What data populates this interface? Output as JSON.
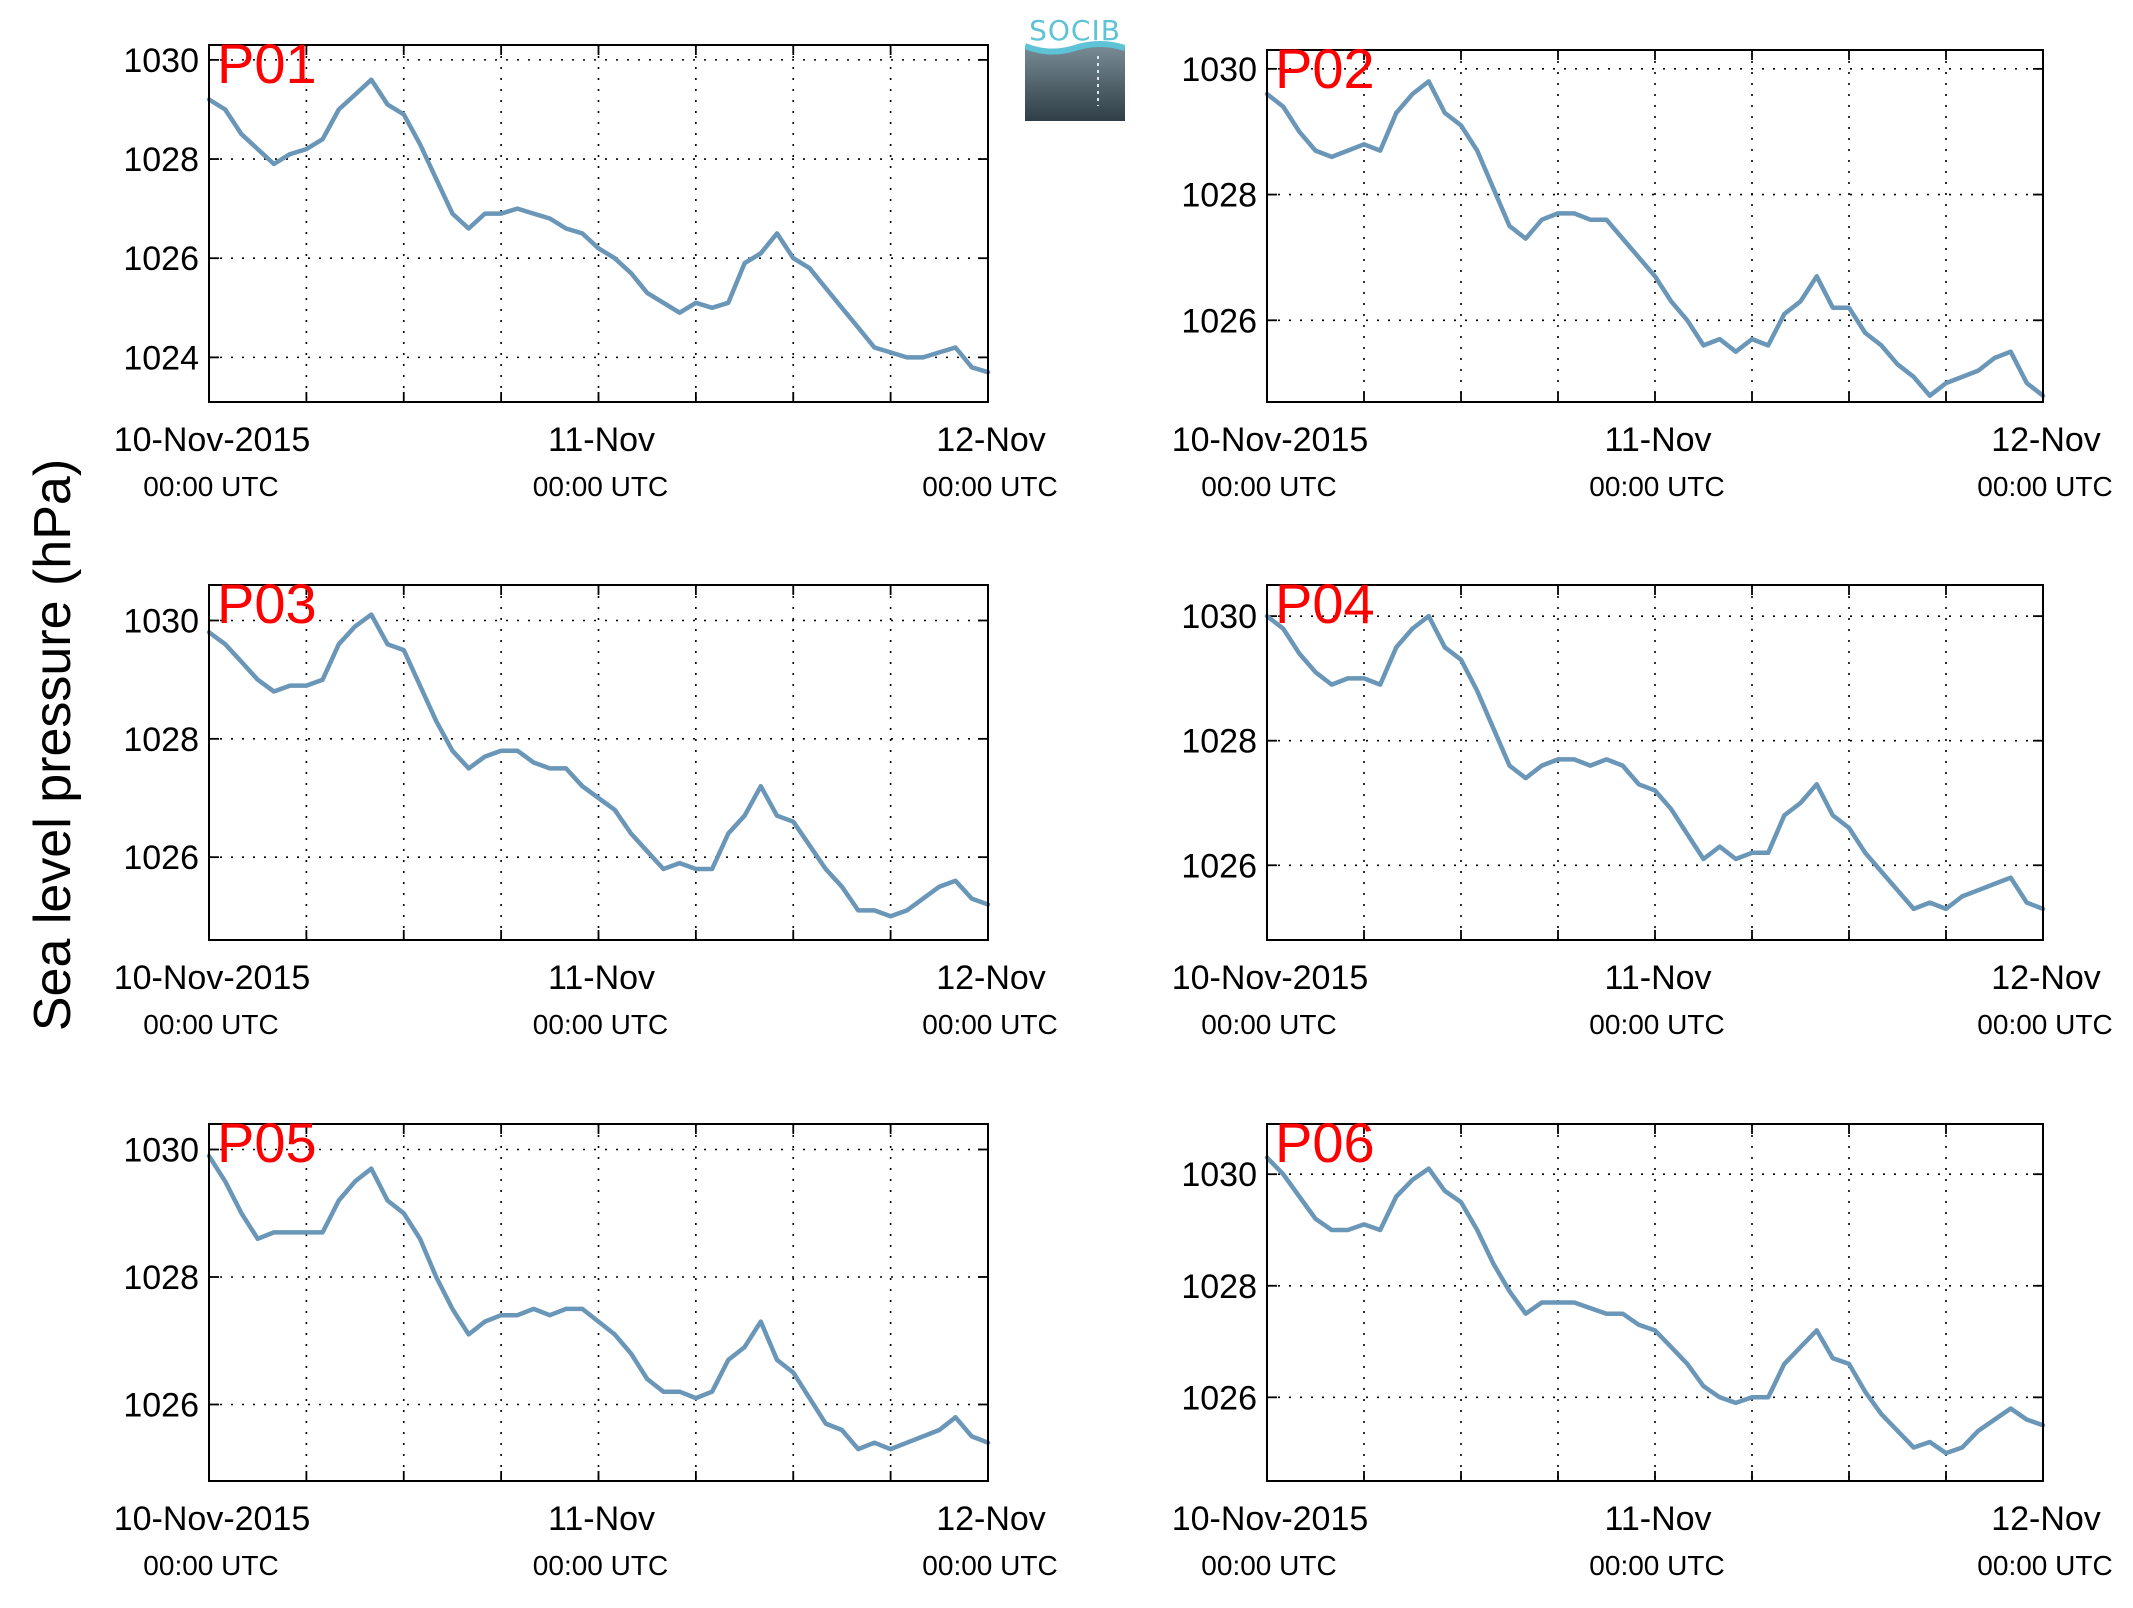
{
  "figure": {
    "ylabel": "Sea level pressure (hPa)",
    "logo_text": "SOCIB"
  },
  "colors": {
    "line": "#6a96b8",
    "panel_label": "#ff0000",
    "axes": "#000000",
    "grid": "#000000"
  },
  "chart_data": [
    {
      "type": "line",
      "label": "P01",
      "ylim": [
        1023.1,
        1030.3
      ],
      "yticks": [
        1024,
        1026,
        1028,
        1030
      ],
      "xlim": [
        0,
        48
      ],
      "xticks": [
        0,
        24,
        48
      ],
      "xticklabels": [
        [
          "10-Nov-2015",
          "00:00 UTC"
        ],
        [
          "11-Nov",
          "00:00 UTC"
        ],
        [
          "12-Nov",
          "00:00 UTC"
        ]
      ],
      "grid": true,
      "x": [
        0,
        1,
        2,
        3,
        4,
        5,
        6,
        7,
        8,
        9,
        10,
        11,
        12,
        13,
        14,
        15,
        16,
        17,
        18,
        19,
        20,
        21,
        22,
        23,
        24,
        25,
        26,
        27,
        28,
        29,
        30,
        31,
        32,
        33,
        34,
        35,
        36,
        37,
        38,
        39,
        40,
        41,
        42,
        43,
        44,
        45,
        46,
        47,
        48
      ],
      "values": [
        1029.2,
        1029.0,
        1028.5,
        1028.2,
        1027.9,
        1028.1,
        1028.2,
        1028.4,
        1029.0,
        1029.3,
        1029.6,
        1029.1,
        1028.9,
        1028.3,
        1027.6,
        1026.9,
        1026.6,
        1026.9,
        1026.9,
        1027.0,
        1026.9,
        1026.8,
        1026.6,
        1026.5,
        1026.2,
        1026.0,
        1025.7,
        1025.3,
        1025.1,
        1024.9,
        1025.1,
        1025.0,
        1025.1,
        1025.9,
        1026.1,
        1026.5,
        1026.0,
        1025.8,
        1025.4,
        1025.0,
        1024.6,
        1024.2,
        1024.1,
        1024.0,
        1024.0,
        1024.1,
        1024.2,
        1023.8,
        1023.7
      ]
    },
    {
      "type": "line",
      "label": "P02",
      "ylim": [
        1024.7,
        1030.3
      ],
      "yticks": [
        1026,
        1028,
        1030
      ],
      "xlim": [
        0,
        48
      ],
      "xticks": [
        0,
        24,
        48
      ],
      "xticklabels": [
        [
          "10-Nov-2015",
          "00:00 UTC"
        ],
        [
          "11-Nov",
          "00:00 UTC"
        ],
        [
          "12-Nov",
          "00:00 UTC"
        ]
      ],
      "grid": true,
      "x": [
        0,
        1,
        2,
        3,
        4,
        5,
        6,
        7,
        8,
        9,
        10,
        11,
        12,
        13,
        14,
        15,
        16,
        17,
        18,
        19,
        20,
        21,
        22,
        23,
        24,
        25,
        26,
        27,
        28,
        29,
        30,
        31,
        32,
        33,
        34,
        35,
        36,
        37,
        38,
        39,
        40,
        41,
        42,
        43,
        44,
        45,
        46,
        47,
        48
      ],
      "values": [
        1029.6,
        1029.4,
        1029.0,
        1028.7,
        1028.6,
        1028.7,
        1028.8,
        1028.7,
        1029.3,
        1029.6,
        1029.8,
        1029.3,
        1029.1,
        1028.7,
        1028.1,
        1027.5,
        1027.3,
        1027.6,
        1027.7,
        1027.7,
        1027.6,
        1027.6,
        1027.3,
        1027.0,
        1026.7,
        1026.3,
        1026.0,
        1025.6,
        1025.7,
        1025.5,
        1025.7,
        1025.6,
        1026.1,
        1026.3,
        1026.7,
        1026.2,
        1026.2,
        1025.8,
        1025.6,
        1025.3,
        1025.1,
        1024.8,
        1025.0,
        1025.1,
        1025.2,
        1025.4,
        1025.5,
        1025.0,
        1024.8
      ]
    },
    {
      "type": "line",
      "label": "P03",
      "ylim": [
        1024.6,
        1030.6
      ],
      "yticks": [
        1026,
        1028,
        1030
      ],
      "xlim": [
        0,
        48
      ],
      "xticks": [
        0,
        24,
        48
      ],
      "xticklabels": [
        [
          "10-Nov-2015",
          "00:00 UTC"
        ],
        [
          "11-Nov",
          "00:00 UTC"
        ],
        [
          "12-Nov",
          "00:00 UTC"
        ]
      ],
      "grid": true,
      "x": [
        0,
        1,
        2,
        3,
        4,
        5,
        6,
        7,
        8,
        9,
        10,
        11,
        12,
        13,
        14,
        15,
        16,
        17,
        18,
        19,
        20,
        21,
        22,
        23,
        24,
        25,
        26,
        27,
        28,
        29,
        30,
        31,
        32,
        33,
        34,
        35,
        36,
        37,
        38,
        39,
        40,
        41,
        42,
        43,
        44,
        45,
        46,
        47,
        48
      ],
      "values": [
        1029.8,
        1029.6,
        1029.3,
        1029.0,
        1028.8,
        1028.9,
        1028.9,
        1029.0,
        1029.6,
        1029.9,
        1030.1,
        1029.6,
        1029.5,
        1028.9,
        1028.3,
        1027.8,
        1027.5,
        1027.7,
        1027.8,
        1027.8,
        1027.6,
        1027.5,
        1027.5,
        1027.2,
        1027.0,
        1026.8,
        1026.4,
        1026.1,
        1025.8,
        1025.9,
        1025.8,
        1025.8,
        1026.4,
        1026.7,
        1027.2,
        1026.7,
        1026.6,
        1026.2,
        1025.8,
        1025.5,
        1025.1,
        1025.1,
        1025.0,
        1025.1,
        1025.3,
        1025.5,
        1025.6,
        1025.3,
        1025.2
      ]
    },
    {
      "type": "line",
      "label": "P04",
      "ylim": [
        1024.8,
        1030.5
      ],
      "yticks": [
        1026,
        1028,
        1030
      ],
      "xlim": [
        0,
        48
      ],
      "xticks": [
        0,
        24,
        48
      ],
      "xticklabels": [
        [
          "10-Nov-2015",
          "00:00 UTC"
        ],
        [
          "11-Nov",
          "00:00 UTC"
        ],
        [
          "12-Nov",
          "00:00 UTC"
        ]
      ],
      "grid": true,
      "x": [
        0,
        1,
        2,
        3,
        4,
        5,
        6,
        7,
        8,
        9,
        10,
        11,
        12,
        13,
        14,
        15,
        16,
        17,
        18,
        19,
        20,
        21,
        22,
        23,
        24,
        25,
        26,
        27,
        28,
        29,
        30,
        31,
        32,
        33,
        34,
        35,
        36,
        37,
        38,
        39,
        40,
        41,
        42,
        43,
        44,
        45,
        46,
        47,
        48
      ],
      "values": [
        1030.0,
        1029.8,
        1029.4,
        1029.1,
        1028.9,
        1029.0,
        1029.0,
        1028.9,
        1029.5,
        1029.8,
        1030.0,
        1029.5,
        1029.3,
        1028.8,
        1028.2,
        1027.6,
        1027.4,
        1027.6,
        1027.7,
        1027.7,
        1027.6,
        1027.7,
        1027.6,
        1027.3,
        1027.2,
        1026.9,
        1026.5,
        1026.1,
        1026.3,
        1026.1,
        1026.2,
        1026.2,
        1026.8,
        1027.0,
        1027.3,
        1026.8,
        1026.6,
        1026.2,
        1025.9,
        1025.6,
        1025.3,
        1025.4,
        1025.3,
        1025.5,
        1025.6,
        1025.7,
        1025.8,
        1025.4,
        1025.3
      ]
    },
    {
      "type": "line",
      "label": "P05",
      "ylim": [
        1024.8,
        1030.4
      ],
      "yticks": [
        1026,
        1028,
        1030
      ],
      "xlim": [
        0,
        48
      ],
      "xticks": [
        0,
        24,
        48
      ],
      "xticklabels": [
        [
          "10-Nov-2015",
          "00:00 UTC"
        ],
        [
          "11-Nov",
          "00:00 UTC"
        ],
        [
          "12-Nov",
          "00:00 UTC"
        ]
      ],
      "grid": true,
      "x": [
        0,
        1,
        2,
        3,
        4,
        5,
        6,
        7,
        8,
        9,
        10,
        11,
        12,
        13,
        14,
        15,
        16,
        17,
        18,
        19,
        20,
        21,
        22,
        23,
        24,
        25,
        26,
        27,
        28,
        29,
        30,
        31,
        32,
        33,
        34,
        35,
        36,
        37,
        38,
        39,
        40,
        41,
        42,
        43,
        44,
        45,
        46,
        47,
        48
      ],
      "values": [
        1029.9,
        1029.5,
        1029.0,
        1028.6,
        1028.7,
        1028.7,
        1028.7,
        1028.7,
        1029.2,
        1029.5,
        1029.7,
        1029.2,
        1029.0,
        1028.6,
        1028.0,
        1027.5,
        1027.1,
        1027.3,
        1027.4,
        1027.4,
        1027.5,
        1027.4,
        1027.5,
        1027.5,
        1027.3,
        1027.1,
        1026.8,
        1026.4,
        1026.2,
        1026.2,
        1026.1,
        1026.2,
        1026.7,
        1026.9,
        1027.3,
        1026.7,
        1026.5,
        1026.1,
        1025.7,
        1025.6,
        1025.3,
        1025.4,
        1025.3,
        1025.4,
        1025.5,
        1025.6,
        1025.8,
        1025.5,
        1025.4
      ]
    },
    {
      "type": "line",
      "label": "P06",
      "ylim": [
        1024.5,
        1030.9
      ],
      "yticks": [
        1026,
        1028,
        1030
      ],
      "xlim": [
        0,
        48
      ],
      "xticks": [
        0,
        24,
        48
      ],
      "xticklabels": [
        [
          "10-Nov-2015",
          "00:00 UTC"
        ],
        [
          "11-Nov",
          "00:00 UTC"
        ],
        [
          "12-Nov",
          "00:00 UTC"
        ]
      ],
      "grid": true,
      "x": [
        0,
        1,
        2,
        3,
        4,
        5,
        6,
        7,
        8,
        9,
        10,
        11,
        12,
        13,
        14,
        15,
        16,
        17,
        18,
        19,
        20,
        21,
        22,
        23,
        24,
        25,
        26,
        27,
        28,
        29,
        30,
        31,
        32,
        33,
        34,
        35,
        36,
        37,
        38,
        39,
        40,
        41,
        42,
        43,
        44,
        45,
        46,
        47,
        48
      ],
      "values": [
        1030.3,
        1030.0,
        1029.6,
        1029.2,
        1029.0,
        1029.0,
        1029.1,
        1029.0,
        1029.6,
        1029.9,
        1030.1,
        1029.7,
        1029.5,
        1029.0,
        1028.4,
        1027.9,
        1027.5,
        1027.7,
        1027.7,
        1027.7,
        1027.6,
        1027.5,
        1027.5,
        1027.3,
        1027.2,
        1026.9,
        1026.6,
        1026.2,
        1026.0,
        1025.9,
        1026.0,
        1026.0,
        1026.6,
        1026.9,
        1027.2,
        1026.7,
        1026.6,
        1026.1,
        1025.7,
        1025.4,
        1025.1,
        1025.2,
        1025.0,
        1025.1,
        1025.4,
        1025.6,
        1025.8,
        1025.6,
        1025.5
      ]
    }
  ]
}
